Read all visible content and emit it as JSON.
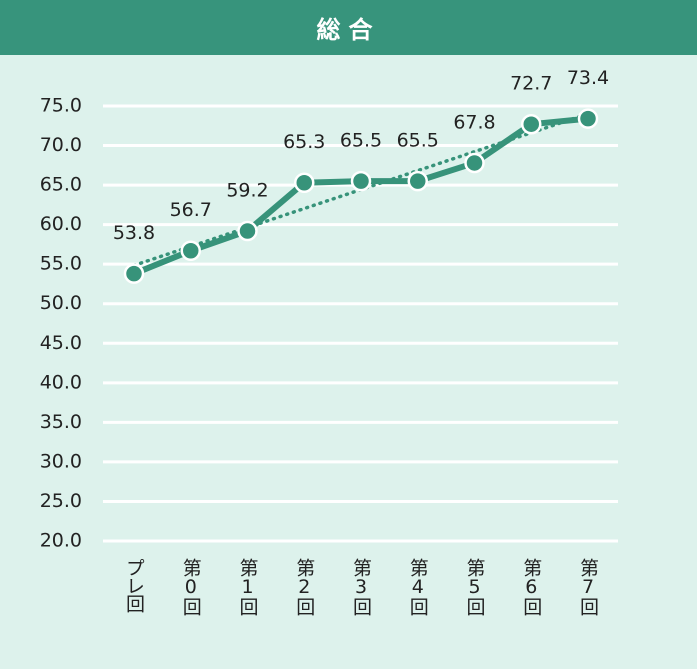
{
  "chart_data": {
    "type": "line",
    "title": "総合",
    "categories": [
      "プレ回",
      "第0回",
      "第1回",
      "第2回",
      "第3回",
      "第4回",
      "第5回",
      "第6回",
      "第7回"
    ],
    "series": [
      {
        "values": [
          53.8,
          56.7,
          59.2,
          65.3,
          65.5,
          65.5,
          67.8,
          72.7,
          73.4
        ],
        "color": "#37937a"
      }
    ],
    "ylim": [
      20,
      75
    ],
    "yticks": [
      {
        "value": 20,
        "label": "20.0"
      },
      {
        "value": 25,
        "label": "25.0"
      },
      {
        "value": 30,
        "label": "30.0"
      },
      {
        "value": 35,
        "label": "35.0"
      },
      {
        "value": 40,
        "label": "40.0"
      },
      {
        "value": 45,
        "label": "45.0"
      },
      {
        "value": 50,
        "label": "50.0"
      },
      {
        "value": 55,
        "label": "55.0"
      },
      {
        "value": 60,
        "label": "60.0"
      },
      {
        "value": 65,
        "label": "65.0"
      },
      {
        "value": 70,
        "label": "70.0"
      },
      {
        "value": 75,
        "label": "75.0"
      }
    ],
    "grid": true,
    "trendline": true,
    "data_labels": true
  }
}
